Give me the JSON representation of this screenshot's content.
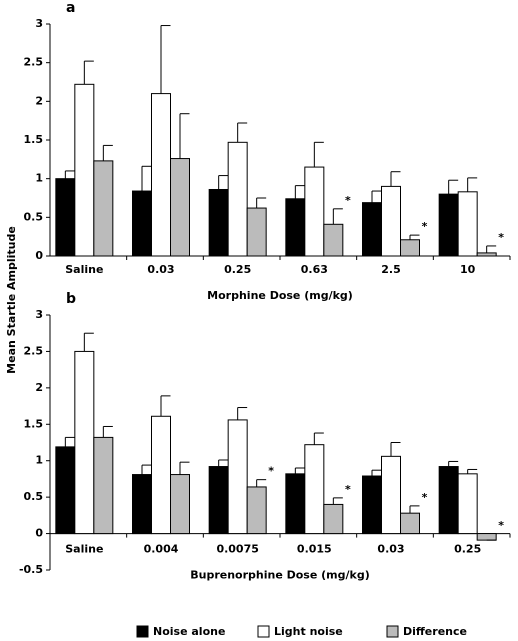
{
  "y_axis_label": "Mean Startle Amplitude",
  "chart_data": [
    {
      "type": "bar",
      "label": "a",
      "x_axis_label": "Morphine Dose (mg/kg)",
      "categories": [
        "Saline",
        "0.03",
        "0.25",
        "0.63",
        "2.5",
        "10"
      ],
      "ylim": [
        0,
        3
      ],
      "yticks": [
        0,
        0.5,
        1,
        1.5,
        2,
        2.5,
        3
      ],
      "grid": false,
      "significance_marker": "*",
      "series": [
        {
          "name": "Noise alone",
          "color": "#000000",
          "values": [
            1.0,
            0.84,
            0.86,
            0.74,
            0.69,
            0.8
          ],
          "errors": [
            0.1,
            0.32,
            0.18,
            0.17,
            0.15,
            0.18
          ]
        },
        {
          "name": "Light noise",
          "color": "#ffffff",
          "values": [
            2.22,
            2.1,
            1.47,
            1.15,
            0.9,
            0.83
          ],
          "errors": [
            0.3,
            0.88,
            0.25,
            0.32,
            0.19,
            0.18
          ]
        },
        {
          "name": "Difference",
          "color": "#bbbbbb",
          "values": [
            1.23,
            1.26,
            0.62,
            0.41,
            0.21,
            0.04
          ],
          "errors": [
            0.2,
            0.58,
            0.13,
            0.2,
            0.06,
            0.09
          ],
          "significant": [
            false,
            false,
            false,
            true,
            true,
            true
          ]
        }
      ]
    },
    {
      "type": "bar",
      "label": "b",
      "x_axis_label": "Buprenorphine Dose (mg/kg)",
      "categories": [
        "Saline",
        "0.004",
        "0.0075",
        "0.015",
        "0.03",
        "0.25"
      ],
      "ylim": [
        -0.5,
        3
      ],
      "yticks": [
        -0.5,
        0,
        0.5,
        1,
        1.5,
        2,
        2.5,
        3
      ],
      "grid": false,
      "significance_marker": "*",
      "series": [
        {
          "name": "Noise alone",
          "color": "#000000",
          "values": [
            1.19,
            0.81,
            0.92,
            0.82,
            0.79,
            0.92
          ],
          "errors": [
            0.13,
            0.13,
            0.09,
            0.08,
            0.08,
            0.07
          ]
        },
        {
          "name": "Light noise",
          "color": "#ffffff",
          "values": [
            2.5,
            1.61,
            1.56,
            1.22,
            1.06,
            0.82
          ],
          "errors": [
            0.25,
            0.28,
            0.17,
            0.16,
            0.19,
            0.06
          ]
        },
        {
          "name": "Difference",
          "color": "#bbbbbb",
          "values": [
            1.32,
            0.81,
            0.64,
            0.4,
            0.28,
            -0.09
          ],
          "errors": [
            0.15,
            0.17,
            0.1,
            0.09,
            0.1,
            0
          ],
          "significant": [
            false,
            false,
            true,
            true,
            true,
            true
          ]
        }
      ]
    }
  ]
}
